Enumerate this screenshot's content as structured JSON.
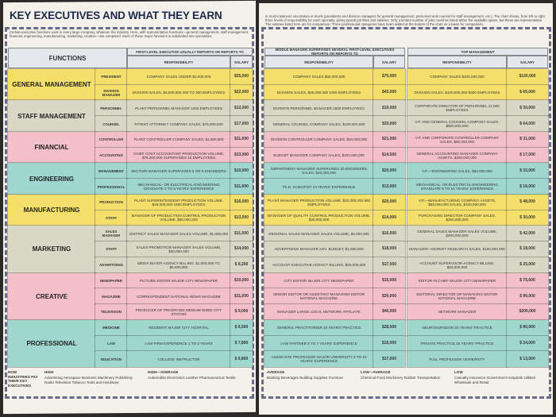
{
  "header": {
    "title": "KEY EXECUTIVES AND WHAT THEY EARN",
    "intro_left": "Certain executive functions exist in every large company, whatever the industry. Here, with representative functions—general management, staff management, financial, engineering, manufacturing, marketing, creative—are compared. Each of these major functions is subdivided into specialties.",
    "intro_right": "In most instances secretaries or levels (presidents and division managers for general management; personnel and counsel for staff management, etc.). The chart shows, from left to right, three levels of responsibility for each specialty, giving typical job titles and salaries. Only a limited number of jobs could be listed within the available space, but these are representative. The salaries listed here are for comparison. Three professional categories have been added at the bottom of the chart as a basis for comparison."
  },
  "columns": {
    "functions": "FUNCTIONS",
    "first_level": "FIRST-LEVEL EXECUTIVE USUALLY REPORTS OR REPORTS TO",
    "middle": "MIDDLE MANAGER SUPERVISES SEVERAL FIRST-LEVEL EXECUTIVES REPORTS OR REPORTS TO",
    "top": "TOP MANAGEMENT",
    "responsibility": "RESPONSIBILITY",
    "salary": "SALARY"
  },
  "table": {
    "groups": [
      {
        "function": "GENERAL MANAGEMENT",
        "rows": [
          [
            "PRESIDENT",
            "COMPANY SALES UNDER $2,000,000",
            "$25,000",
            "COMPANY SALES $50,000,000",
            "$75,000",
            "COMPANY SALES $200,000,000",
            "$120,000"
          ],
          [
            "DIVISION MANAGER",
            "DIVISION SALES, $5,000,000 200 TO 300 EMPLOYEES",
            "$22,000",
            "DIVISION SALES, $25,000,000 1000 EMPLOYEES",
            "$43,000",
            "DIVISION SALES, $100,000,000 5000 EMPLOYEES",
            "$ 65,000"
          ]
        ]
      },
      {
        "function": "STAFF MANAGEMENT",
        "rows": [
          [
            "PERSONNEL",
            "PLANT PERSONNEL MANAGER 1000 EMPLOYEES",
            "$12,000",
            "DIVISION PERSONNEL MANAGER 2500 EMPLOYEES",
            "$19,000",
            "CORPORATE DIRECTOR OF PERSONNEL 12,000 EMPLOYEES",
            "$ 30,000"
          ],
          [
            "COUNSEL",
            "PATENT ATTORNEY COMPANY SALES, $75,000,000",
            "$17,000",
            "GENERAL COUNSEL COMPANY SALES, $100,000,000",
            "$33,000",
            "V.P. AND GENERAL COUNSEL COMPANY SALES, $500,000,000",
            "$ 64,000"
          ]
        ]
      },
      {
        "function": "FINANCIAL",
        "rows": [
          [
            "CONTROLLER",
            "PLANT CONTROLLER COMPANY SALES, $1,500,000",
            "$11,000",
            "DIVISION CONTROLLER COMPANY SALES, $20,000,000",
            "$21,000",
            "V.P. AND CORPORATE CONTROLLER COMPANY SALES, $60,000,000",
            "$ 31,000"
          ],
          [
            "ACCOUNTING",
            "CHIEF COST ACCOUNTANT PRODUCTION VOLUME, $75,000,000 SUPERVISES 15 EMPLOYEES",
            "$13,000",
            "BUDGET MANAGER COMPANY SALES, $100,000,000",
            "$14,500",
            "GENERAL ACCOUNTING MANAGER COMPANY ASSETS, $300,000,000",
            "$ 17,000"
          ]
        ]
      },
      {
        "function": "ENGINEERING",
        "rows": [
          [
            "MANAGEMENT",
            "SECTION MANAGER SUPERVISES 5 OR 6 ENGINEERS",
            "$10,000",
            "DEPARTMENT MANAGER SUPERVISES 20 ENGINEERS SALES, $25,000,000",
            "$20,000",
            "V.P.—ENGINEERING SALES, $50,000,000",
            "$ 32,000"
          ],
          [
            "PROFESSIONAL",
            "MECHANICAL- OR ELECTRICAL-ENGINEERING GRADUATE 3 TO 5 YEARS' EXPERIENCE",
            "$11,000",
            "Ph.D. SCIENTIST 10 YEARS' EXPERIENCE",
            "$13,000",
            "MECHANICAL- OR ELECTRICAL-ENGINEERING GRADUATE 9 TO 15 YEARS' EXPERIENCE",
            "$ 16,000"
          ]
        ]
      },
      {
        "function": "MANUFACTURING",
        "rows": [
          [
            "PRODUCTION",
            "PLANT SUPERINTENDENT PRODUCTION VOLUME, $40,000,000 1000 EMPLOYEES",
            "$16,000",
            "PLANT MANAGER PRODUCTION VOLUME, $20,000,000 900 EMPLOYEES",
            "$20,000",
            "V.P.—MANUFACTURING COMPANY ASSETS, $50,000,000 SALES, $100,000,000",
            "$ 48,000"
          ],
          [
            "STAFF",
            "MANAGER OF PRODUCTION CONTROL PRODUCTION VOLUME, $50,000,000",
            "$13,000",
            "MANAGER OF QUALITY CONTROL PRODUCTION VOLUME, $30,000,000",
            "$14,000",
            "PURCHASING DIRECTOR COMPANY SALES, $250,000,000",
            "$ 30,000"
          ]
        ]
      },
      {
        "function": "MARKETING",
        "rows": [
          [
            "SALES MANAGER",
            "DISTRICT SALES MANAGER SALES VOLUME, $1,000,000",
            "$11,000",
            "REGIONAL SALES MANAGER SALES VOLUME, $4,000,000",
            "$16,000",
            "GENERAL SALES MANAGER SALES VOLUME, $200,000,000",
            "$ 42,000"
          ],
          [
            "STAFF",
            "SALES-PROMOTION MANAGER SALES VOLUME, $30,000,000",
            "$14,000",
            "ADVERTISING MANAGER ADV. BUDGET, $1,000,000",
            "$18,000",
            "MANAGER—MARKET RESEARCH SALES, $150,000,000",
            "$ 18,000"
          ],
          [
            "ADVERTISING",
            "MEDIA BUYER AGENCY BILLING, $1,000,000 TO $5,000,000",
            "$ 8,200",
            "ACCOUNT EXECUTIVE AGENCY BILLING, $20,000,000",
            "$17,000",
            "ACCOUNT SUPERVISOR AGENCY BILLING, $20,000,000",
            "$ 25,000"
          ]
        ]
      },
      {
        "function": "CREATIVE",
        "rows": [
          [
            "NEWSPAPER",
            "PICTURE EDITOR MAJOR CITY NEWSPAPER",
            "$10,000",
            "CITY EDITOR MAJOR CITY NEWSPAPER",
            "$15,000",
            "EDITOR IN CHIEF MAJOR CITY NEWSPAPER",
            "$ 75,000"
          ],
          [
            "MAGAZINE",
            "CORRESPONDENT NATIONAL NEWS MAGAZINE",
            "$11,000",
            "SENIOR EDITOR OR ASSISTANT MANAGING EDITOR NATIONAL MAGAZINE",
            "$30,000",
            "EDITORIAL DIRECTOR OR MANAGING EDITOR NATIONAL MAGAZINE",
            "$ 90,000"
          ],
          [
            "TELEVISION",
            "PRODUCER OF PROGRAMS MEDIUM-SIZED CITY STATION",
            "$ 9,000",
            "MANAGER LARGE LOCAL NETWORK AFFILIATE",
            "$40,000",
            "NETWORK MANAGER",
            "$200,000"
          ]
        ]
      },
      {
        "function": "PROFESSIONAL",
        "rows": [
          [
            "MEDICINE",
            "RESIDENT MAJOR CITY HOSPITAL",
            "$ 6,500",
            "GENERAL PRACTITIONER 10 YEARS' PRACTICE",
            "$28,500",
            "NEUROSURGEON 20 YEARS' PRACTICE",
            "$ 80,000"
          ],
          [
            "LAW",
            "LAW-FIRM EXPERIENCE 1 TO 3 YEARS",
            "$ 7,800",
            "LAW PARTNER 5 TO 7 YEARS' EXPERIENCE",
            "$15,000",
            "PRIVATE PRACTICE 15 YEARS' PRACTICE",
            "$ 24,000"
          ],
          [
            "EDUCATION",
            "COLLEGE INSTRUCTOR",
            "$ 6,800",
            "ASSOCIATE PROFESSOR MAJOR UNIVERSITY 8 TO 10 YEARS' EXPERIENCE",
            "$17,000",
            "FULL PROFESSOR UNIVERSITY",
            "$ 13,000"
          ]
        ]
      }
    ]
  },
  "footer": {
    "label": "HOW INDUSTRIES PAY THEIR KEY EXECUTIVES",
    "left": [
      {
        "level": "HIGH",
        "industries": "Advertising Aerospace Business Machinery Publishing Radio Television Tobacco Tools and Hardware"
      },
      {
        "level": "HIGH—AVERAGE",
        "industries": "Automobile Electronics Leather Pharmaceutical Textile"
      }
    ],
    "right": [
      {
        "level": "AVERAGE",
        "industries": "Banking Beverages Building Supplies Furniture"
      },
      {
        "level": "LOW—AVERAGE",
        "industries": "Chemical Food Machinery Rubber Transportation"
      },
      {
        "level": "LOW",
        "industries": "Casualty Insurance Government Hospitals Utilities Wholesale and Retail"
      }
    ]
  }
}
